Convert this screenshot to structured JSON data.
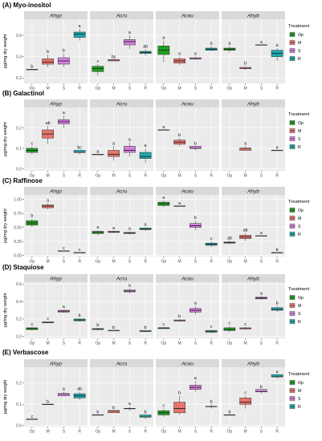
{
  "legend": {
    "title": "Treatment",
    "items": [
      {
        "label": "Op",
        "color": "#1fa01f"
      },
      {
        "label": "M",
        "color": "#e8736c"
      },
      {
        "label": "S",
        "color": "#d77fe0"
      },
      {
        "label": "R",
        "color": "#1ba9b0"
      }
    ]
  },
  "chart_data": [
    {
      "type": "box",
      "title": "(A) Myo-inositol",
      "ylabel": "µg/mg dry weight",
      "ylim": [
        0.15,
        0.75
      ],
      "yticks": [
        0.2,
        0.4,
        0.6
      ],
      "facets": [
        "Ahyp",
        "Acru",
        "Acau",
        "Ahyb"
      ],
      "categories": [
        "Op",
        "M",
        "S",
        "R"
      ],
      "boxes": [
        {
          "facet": "Ahyp",
          "cat": "Op",
          "q": [
            0.28,
            0.28,
            0.28,
            0.28,
            0.28
          ],
          "sig": "b"
        },
        {
          "facet": "Ahyp",
          "cat": "M",
          "q": [
            0.3,
            0.33,
            0.35,
            0.38,
            0.42
          ],
          "sig": "b"
        },
        {
          "facet": "Ahyp",
          "cat": "S",
          "q": [
            0.3,
            0.33,
            0.36,
            0.39,
            0.43
          ],
          "sig": "b"
        },
        {
          "facet": "Ahyp",
          "cat": "R",
          "q": [
            0.55,
            0.58,
            0.61,
            0.63,
            0.66
          ],
          "sig": "a"
        },
        {
          "facet": "Acru",
          "cat": "Op",
          "q": [
            0.22,
            0.26,
            0.29,
            0.31,
            0.33
          ],
          "sig": "c"
        },
        {
          "facet": "Acru",
          "cat": "M",
          "q": [
            0.36,
            0.36,
            0.37,
            0.37,
            0.37
          ],
          "sig": "bc"
        },
        {
          "facet": "Acru",
          "cat": "S",
          "q": [
            0.47,
            0.51,
            0.54,
            0.56,
            0.6
          ],
          "sig": "a"
        },
        {
          "facet": "Acru",
          "cat": "R",
          "q": [
            0.41,
            0.43,
            0.44,
            0.45,
            0.47
          ],
          "sig": "ab"
        },
        {
          "facet": "Acau",
          "cat": "Op",
          "q": [
            0.35,
            0.42,
            0.46,
            0.5,
            0.55
          ],
          "sig": "a"
        },
        {
          "facet": "Acau",
          "cat": "M",
          "q": [
            0.32,
            0.34,
            0.36,
            0.38,
            0.4
          ],
          "sig": "a"
        },
        {
          "facet": "Acau",
          "cat": "S",
          "q": [
            0.37,
            0.38,
            0.38,
            0.39,
            0.4
          ],
          "sig": "a"
        },
        {
          "facet": "Acau",
          "cat": "R",
          "q": [
            0.45,
            0.46,
            0.47,
            0.48,
            0.5
          ],
          "sig": "a"
        },
        {
          "facet": "Ahyb",
          "cat": "Op",
          "q": [
            0.44,
            0.46,
            0.47,
            0.48,
            0.5
          ],
          "sig": "a"
        },
        {
          "facet": "Ahyb",
          "cat": "M",
          "q": [
            0.28,
            0.29,
            0.29,
            0.3,
            0.31
          ],
          "sig": "b"
        },
        {
          "facet": "Ahyb",
          "cat": "S",
          "q": [
            0.51,
            0.51,
            0.51,
            0.51,
            0.51
          ],
          "sig": "a"
        },
        {
          "facet": "Ahyb",
          "cat": "R",
          "q": [
            0.36,
            0.4,
            0.43,
            0.46,
            0.48
          ],
          "sig": "a"
        }
      ]
    },
    {
      "type": "box",
      "title": "(B) Galactinol",
      "ylabel": "µg/mg dry weight",
      "ylim": [
        -0.01,
        0.3
      ],
      "yticks": [
        0.0,
        0.1,
        0.2
      ],
      "tickLabels": [
        "0.0",
        "0.1",
        "0.2"
      ],
      "facets": [
        "Ahyp",
        "Acru",
        "Acau",
        "Ahyb"
      ],
      "categories": [
        "Op",
        "M",
        "S",
        "R"
      ],
      "boxes": [
        {
          "facet": "Ahyp",
          "cat": "Op",
          "q": [
            0.07,
            0.08,
            0.09,
            0.1,
            0.11
          ],
          "sig": "c"
        },
        {
          "facet": "Ahyp",
          "cat": "M",
          "q": [
            0.12,
            0.15,
            0.17,
            0.19,
            0.21
          ],
          "sig": "ab"
        },
        {
          "facet": "Ahyp",
          "cat": "S",
          "q": [
            0.2,
            0.22,
            0.23,
            0.24,
            0.26
          ],
          "sig": "a"
        },
        {
          "facet": "Ahyp",
          "cat": "R",
          "q": [
            0.07,
            0.08,
            0.08,
            0.09,
            0.09
          ],
          "sig": "bc"
        },
        {
          "facet": "Acru",
          "cat": "Op",
          "q": [
            0.07,
            0.07,
            0.07,
            0.07,
            0.07
          ],
          "sig": "a"
        },
        {
          "facet": "Acru",
          "cat": "M",
          "q": [
            0.04,
            0.06,
            0.07,
            0.09,
            0.11
          ],
          "sig": "a"
        },
        {
          "facet": "Acru",
          "cat": "S",
          "q": [
            0.06,
            0.08,
            0.09,
            0.11,
            0.13
          ],
          "sig": "a"
        },
        {
          "facet": "Acru",
          "cat": "R",
          "q": [
            0.03,
            0.05,
            0.06,
            0.08,
            0.1
          ],
          "sig": "a"
        },
        {
          "facet": "Acau",
          "cat": "Op",
          "q": [
            0.19,
            0.19,
            0.19,
            0.19,
            0.19
          ],
          "sig": "a"
        },
        {
          "facet": "Acau",
          "cat": "M",
          "q": [
            0.11,
            0.12,
            0.13,
            0.14,
            0.15
          ],
          "sig": "b"
        },
        {
          "facet": "Acau",
          "cat": "S",
          "q": [
            0.09,
            0.1,
            0.1,
            0.11,
            0.11
          ],
          "sig": "b"
        },
        {
          "facet": "Ahyb",
          "cat": "M",
          "q": [
            0.09,
            0.09,
            0.1,
            0.1,
            0.11
          ],
          "sig": "a"
        },
        {
          "facet": "Ahyb",
          "cat": "R",
          "q": [
            0.09,
            0.09,
            0.09,
            0.09,
            0.09
          ],
          "sig": "a"
        }
      ]
    },
    {
      "type": "box",
      "title": "(C) Raffinose",
      "ylabel": "µg/mg dry weight",
      "ylim": [
        -0.02,
        1.08
      ],
      "yticks": [
        0.0,
        0.25,
        0.5,
        0.75,
        1.0
      ],
      "tickLabels": [
        "0.00",
        "0.25",
        "0.50",
        "0.75",
        "1.00"
      ],
      "facets": [
        "Ahyp",
        "Acru",
        "Acau",
        "Ahyb"
      ],
      "categories": [
        "Op",
        "M",
        "S",
        "R"
      ],
      "boxes": [
        {
          "facet": "Ahyp",
          "cat": "Op",
          "q": [
            0.5,
            0.54,
            0.58,
            0.62,
            0.66
          ],
          "sig": "b"
        },
        {
          "facet": "Ahyp",
          "cat": "M",
          "q": [
            0.82,
            0.85,
            0.88,
            0.9,
            0.93
          ],
          "sig": "a"
        },
        {
          "facet": "Ahyp",
          "cat": "S",
          "q": [
            0.08,
            0.08,
            0.08,
            0.08,
            0.08
          ],
          "sig": "c"
        },
        {
          "facet": "Ahyp",
          "cat": "R",
          "q": [
            0.05,
            0.05,
            0.05,
            0.05,
            0.05
          ],
          "sig": "c"
        },
        {
          "facet": "Acru",
          "cat": "Op",
          "q": [
            0.36,
            0.39,
            0.41,
            0.43,
            0.45
          ],
          "sig": "a"
        },
        {
          "facet": "Acru",
          "cat": "M",
          "q": [
            0.4,
            0.41,
            0.42,
            0.43,
            0.44
          ],
          "sig": "a"
        },
        {
          "facet": "Acru",
          "cat": "S",
          "q": [
            0.37,
            0.39,
            0.4,
            0.41,
            0.43
          ],
          "sig": "a"
        },
        {
          "facet": "Acru",
          "cat": "R",
          "q": [
            0.44,
            0.46,
            0.47,
            0.49,
            0.5
          ],
          "sig": "a"
        },
        {
          "facet": "Acau",
          "cat": "Op",
          "q": [
            0.86,
            0.89,
            0.92,
            0.95,
            0.98
          ],
          "sig": "a"
        },
        {
          "facet": "Acau",
          "cat": "M",
          "q": [
            0.88,
            0.88,
            0.88,
            0.88,
            0.88
          ],
          "sig": "a"
        },
        {
          "facet": "Acau",
          "cat": "S",
          "q": [
            0.45,
            0.5,
            0.53,
            0.57,
            0.62
          ],
          "sig": "b"
        },
        {
          "facet": "Acau",
          "cat": "R",
          "q": [
            0.15,
            0.18,
            0.2,
            0.22,
            0.25
          ],
          "sig": "c"
        },
        {
          "facet": "Ahyb",
          "cat": "Op",
          "q": [
            0.2,
            0.22,
            0.23,
            0.24,
            0.26
          ],
          "sig": "ab"
        },
        {
          "facet": "Ahyb",
          "cat": "M",
          "q": [
            0.26,
            0.3,
            0.33,
            0.36,
            0.4
          ],
          "sig": "ab"
        },
        {
          "facet": "Ahyb",
          "cat": "S",
          "q": [
            0.35,
            0.35,
            0.35,
            0.35,
            0.35
          ],
          "sig": "a"
        },
        {
          "facet": "Ahyb",
          "cat": "R",
          "q": [
            0.05,
            0.05,
            0.05,
            0.05,
            0.05
          ],
          "sig": "b"
        }
      ]
    },
    {
      "type": "box",
      "title": "(D) Staquiose",
      "ylabel": "µg/mg dry weight",
      "ylim": [
        -0.02,
        0.62
      ],
      "yticks": [
        0.0,
        0.2,
        0.4,
        0.6
      ],
      "tickLabels": [
        "0.0",
        "0.2",
        "0.4",
        "0.6"
      ],
      "facets": [
        "Ahyp",
        "Acru",
        "Acau",
        "Ahyb"
      ],
      "categories": [
        "Op",
        "M",
        "S",
        "R"
      ],
      "boxes": [
        {
          "facet": "Ahyp",
          "cat": "Op",
          "q": [
            0.07,
            0.08,
            0.09,
            0.1,
            0.11
          ],
          "sig": "c"
        },
        {
          "facet": "Ahyp",
          "cat": "M",
          "q": [
            0.15,
            0.16,
            0.16,
            0.17,
            0.17
          ],
          "sig": "c"
        },
        {
          "facet": "Ahyp",
          "cat": "S",
          "q": [
            0.27,
            0.28,
            0.29,
            0.3,
            0.31
          ],
          "sig": "a"
        },
        {
          "facet": "Ahyp",
          "cat": "R",
          "q": [
            0.17,
            0.18,
            0.19,
            0.2,
            0.21
          ],
          "sig": "b"
        },
        {
          "facet": "Acru",
          "cat": "Op",
          "q": [
            0.07,
            0.08,
            0.09,
            0.09,
            0.1
          ],
          "sig": "b"
        },
        {
          "facet": "Acru",
          "cat": "M",
          "q": [
            0.07,
            0.07,
            0.07,
            0.07,
            0.07
          ],
          "sig": "b"
        },
        {
          "facet": "Acru",
          "cat": "S",
          "q": [
            0.49,
            0.51,
            0.52,
            0.53,
            0.55
          ],
          "sig": "a"
        },
        {
          "facet": "Acru",
          "cat": "R",
          "q": [
            0.05,
            0.06,
            0.06,
            0.07,
            0.07
          ],
          "sig": "b"
        },
        {
          "facet": "Acau",
          "cat": "Op",
          "q": [
            0.09,
            0.09,
            0.1,
            0.1,
            0.11
          ],
          "sig": "c"
        },
        {
          "facet": "Acau",
          "cat": "M",
          "q": [
            0.17,
            0.18,
            0.18,
            0.19,
            0.2
          ],
          "sig": "b"
        },
        {
          "facet": "Acau",
          "cat": "S",
          "q": [
            0.25,
            0.28,
            0.3,
            0.32,
            0.35
          ],
          "sig": "a"
        },
        {
          "facet": "Acau",
          "cat": "R",
          "q": [
            0.04,
            0.05,
            0.06,
            0.07,
            0.08
          ],
          "sig": "c"
        },
        {
          "facet": "Ahyb",
          "cat": "Op",
          "q": [
            0.05,
            0.07,
            0.08,
            0.1,
            0.12
          ],
          "sig": "c"
        },
        {
          "facet": "Ahyb",
          "cat": "M",
          "q": [
            0.08,
            0.09,
            0.09,
            0.1,
            0.11
          ],
          "sig": "c"
        },
        {
          "facet": "Ahyb",
          "cat": "S",
          "q": [
            0.42,
            0.43,
            0.44,
            0.45,
            0.46
          ],
          "sig": "a"
        },
        {
          "facet": "Ahyb",
          "cat": "R",
          "q": [
            0.28,
            0.3,
            0.31,
            0.33,
            0.35
          ],
          "sig": "b"
        }
      ]
    },
    {
      "type": "box",
      "title": "(E) Verbascose",
      "ylabel": "µg/mg dry weight",
      "ylim": [
        -0.005,
        0.275
      ],
      "yticks": [
        0.0,
        0.1,
        0.2
      ],
      "tickLabels": [
        "0.0",
        "0.1",
        "0.2"
      ],
      "facets": [
        "Ahyp",
        "Acru",
        "Acau",
        "Ahyb"
      ],
      "categories": [
        "Op",
        "M",
        "S",
        "R"
      ],
      "boxes": [
        {
          "facet": "Ahyp",
          "cat": "Op",
          "q": [
            0.03,
            0.03,
            0.03,
            0.03,
            0.03
          ],
          "sig": "c"
        },
        {
          "facet": "Ahyp",
          "cat": "M",
          "q": [
            0.1,
            0.1,
            0.1,
            0.1,
            0.1
          ],
          "sig": "b"
        },
        {
          "facet": "Ahyp",
          "cat": "S",
          "q": [
            0.14,
            0.14,
            0.15,
            0.15,
            0.16
          ],
          "sig": "a"
        },
        {
          "facet": "Ahyp",
          "cat": "R",
          "q": [
            0.12,
            0.13,
            0.14,
            0.15,
            0.16
          ],
          "sig": "ab"
        },
        {
          "facet": "Acru",
          "cat": "Op",
          "q": [
            0.05,
            0.05,
            0.05,
            0.05,
            0.05
          ],
          "sig": "b"
        },
        {
          "facet": "Acru",
          "cat": "M",
          "q": [
            0.06,
            0.06,
            0.07,
            0.07,
            0.07
          ],
          "sig": "b"
        },
        {
          "facet": "Acru",
          "cat": "S",
          "q": [
            0.07,
            0.08,
            0.08,
            0.08,
            0.09
          ],
          "sig": "a"
        },
        {
          "facet": "Acru",
          "cat": "R",
          "q": [
            0.03,
            0.04,
            0.04,
            0.05,
            0.05
          ],
          "sig": "b"
        },
        {
          "facet": "Acau",
          "cat": "Op",
          "q": [
            0.04,
            0.05,
            0.06,
            0.07,
            0.08
          ],
          "sig": "c"
        },
        {
          "facet": "Acau",
          "cat": "M",
          "q": [
            0.05,
            0.06,
            0.08,
            0.11,
            0.14
          ],
          "sig": "b"
        },
        {
          "facet": "Acau",
          "cat": "S",
          "q": [
            0.16,
            0.17,
            0.18,
            0.19,
            0.21
          ],
          "sig": "a"
        },
        {
          "facet": "Acau",
          "cat": "R",
          "q": [
            0.08,
            0.09,
            0.09,
            0.09,
            0.1
          ],
          "sig": "b"
        },
        {
          "facet": "Ahyb",
          "cat": "Op",
          "q": [
            0.05,
            0.05,
            0.05,
            0.05,
            0.05
          ],
          "sig": "d"
        },
        {
          "facet": "Ahyb",
          "cat": "M",
          "q": [
            0.08,
            0.1,
            0.11,
            0.13,
            0.14
          ],
          "sig": "c"
        },
        {
          "facet": "Ahyb",
          "cat": "S",
          "q": [
            0.15,
            0.16,
            0.16,
            0.17,
            0.17
          ],
          "sig": "b"
        },
        {
          "facet": "Ahyb",
          "cat": "R",
          "q": [
            0.22,
            0.23,
            0.23,
            0.24,
            0.24
          ],
          "sig": "a"
        }
      ]
    }
  ]
}
